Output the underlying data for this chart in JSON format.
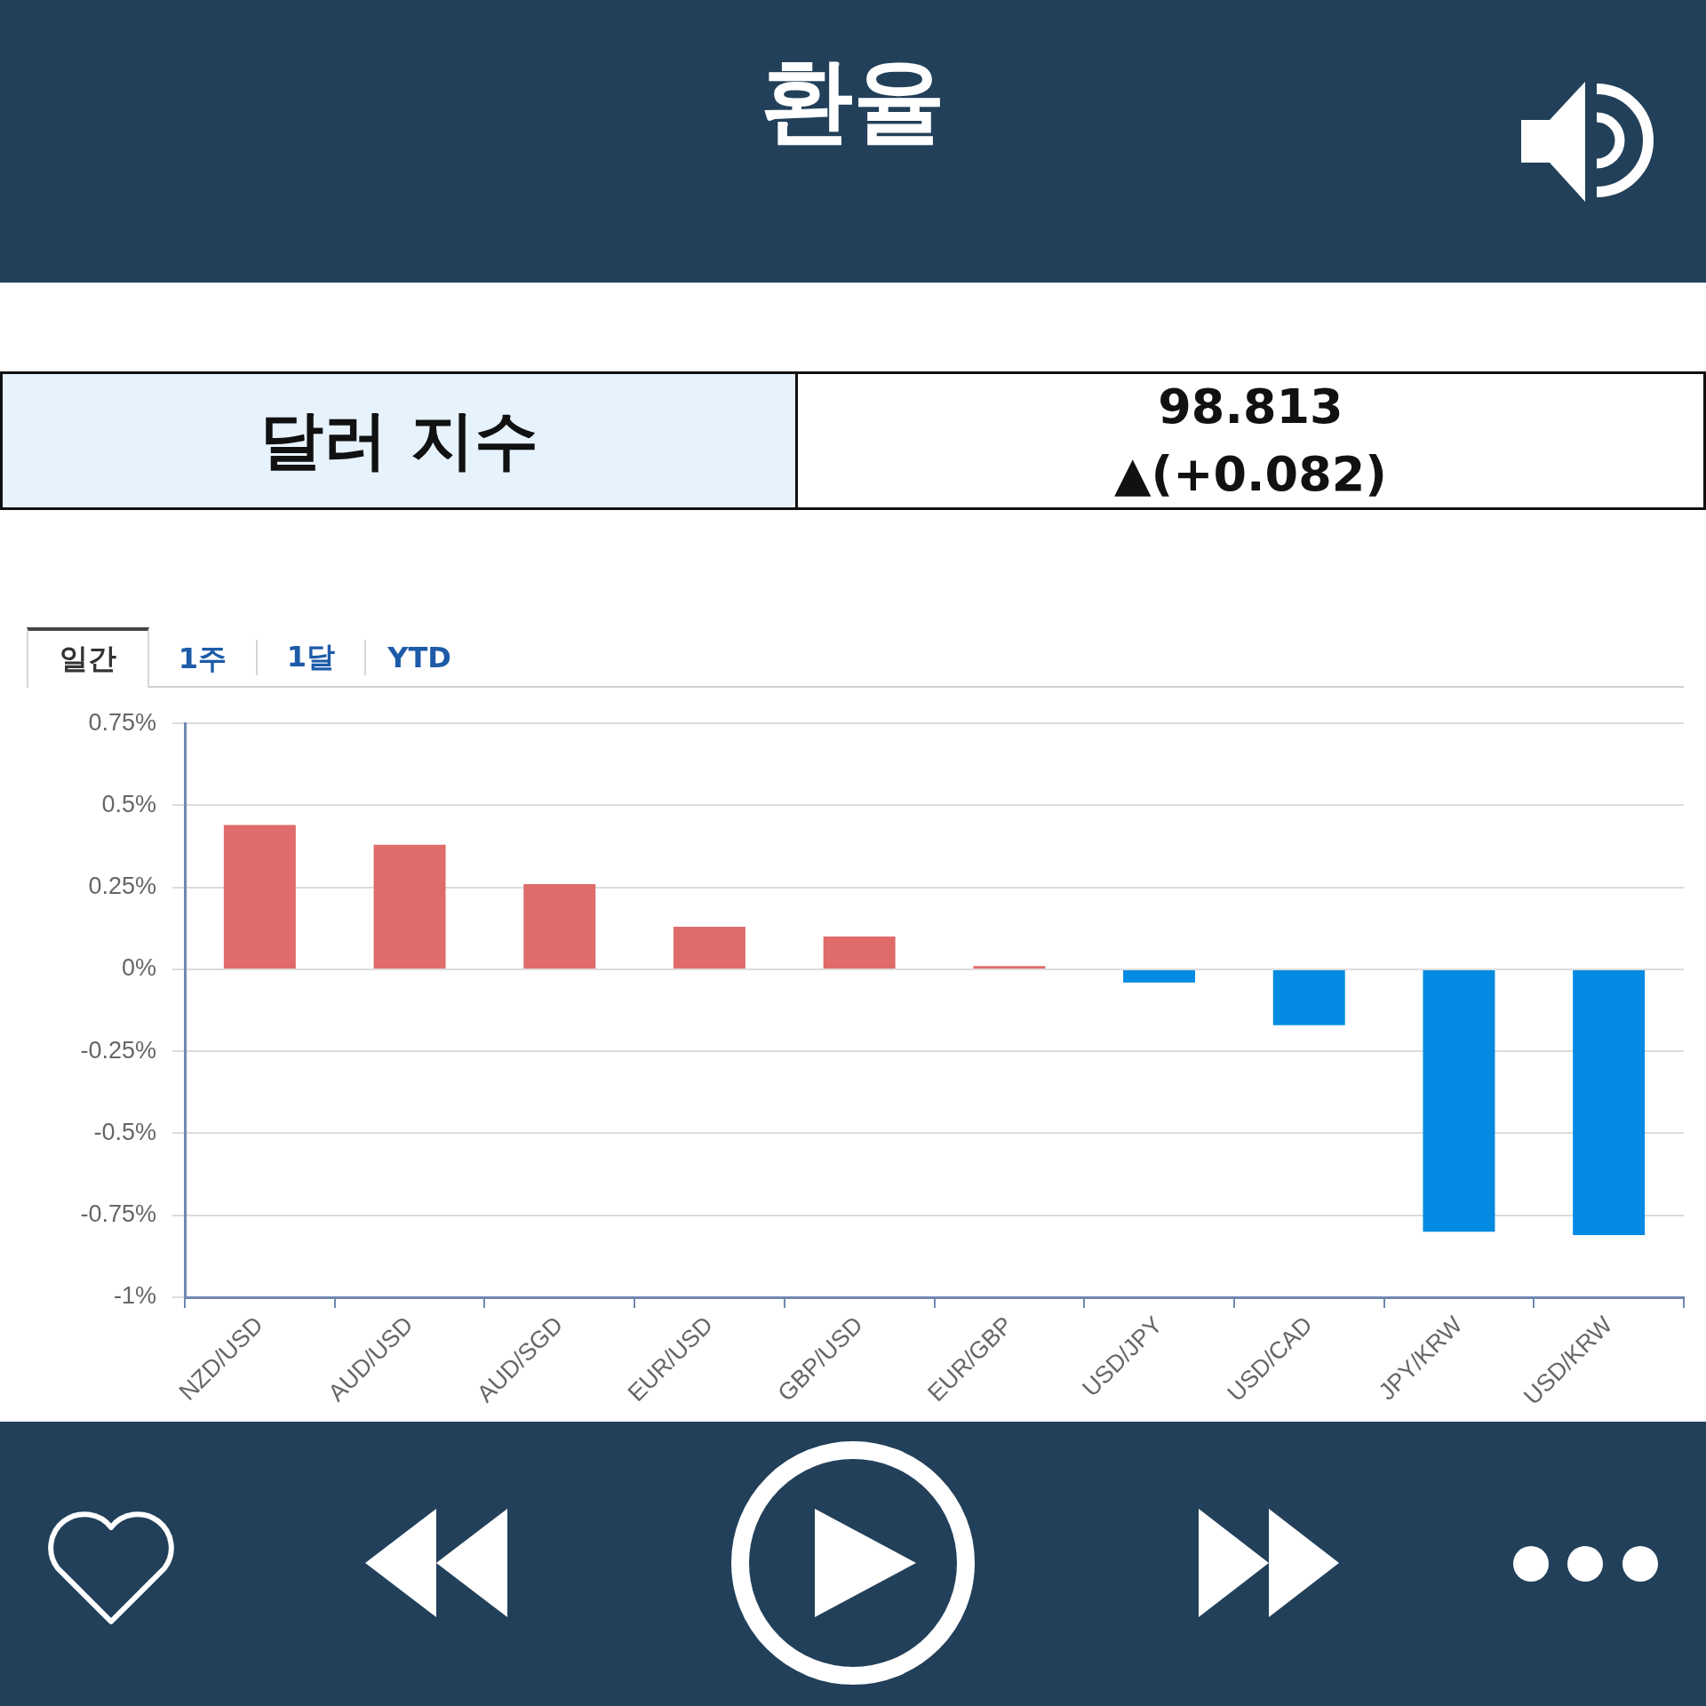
{
  "chart_data": {
    "type": "bar",
    "title": "환율",
    "annotations": [
      "달러 지수",
      "98.813",
      "▲(+0.082)",
      "일간",
      "1주",
      "1달",
      "YTD"
    ],
    "categories": [
      "NZD/USD",
      "AUD/USD",
      "AUD/SGD",
      "EUR/USD",
      "GBP/USD",
      "EUR/GBP",
      "USD/JPY",
      "USD/CAD",
      "JPY/KRW",
      "USD/KRW"
    ],
    "values": [
      0.44,
      0.38,
      0.26,
      0.13,
      0.1,
      0.01,
      -0.04,
      -0.17,
      -0.8,
      -0.81
    ],
    "colors": [
      "#e06b6b",
      "#e06b6b",
      "#e06b6b",
      "#e06b6b",
      "#e06b6b",
      "#e06b6b",
      "#038ae2",
      "#038ae2",
      "#038ae2",
      "#038ae2"
    ],
    "ylim": [
      -1,
      0.75
    ],
    "yticks": [
      {
        "value": 0.75,
        "label": "0.75%"
      },
      {
        "value": 0.5,
        "label": "0.5%"
      },
      {
        "value": 0.25,
        "label": "0.25%"
      },
      {
        "value": 0,
        "label": "0%"
      },
      {
        "value": -0.25,
        "label": "-0.25%"
      },
      {
        "value": -0.5,
        "label": "-0.5%"
      },
      {
        "value": -0.75,
        "label": "-0.75%"
      },
      {
        "value": -1,
        "label": "-1%"
      }
    ],
    "grid": "y"
  }
}
